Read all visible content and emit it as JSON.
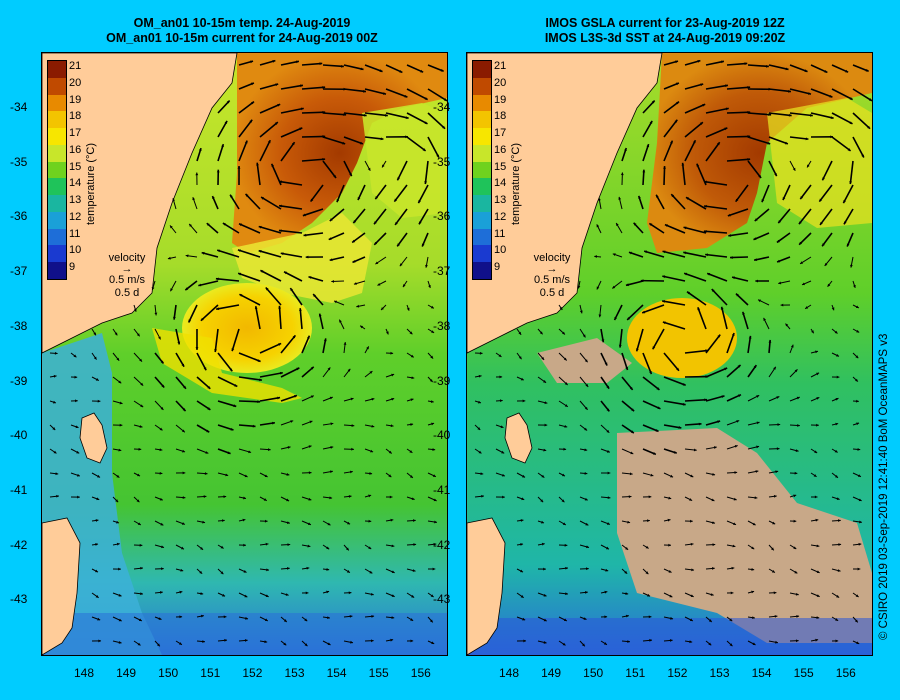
{
  "left": {
    "title_line1": "OM_an01 10-15m temp. 24-Aug-2019",
    "title_line2": "OM_an01 10-15m current for 24-Aug-2019 00Z"
  },
  "right": {
    "title_line1": "IMOS GSLA current for 23-Aug-2019 12Z",
    "title_line2": "IMOS L3S-3d SST at 24-Aug-2019 09:20Z"
  },
  "colorbar": {
    "title": "temperature (°C)",
    "ticks": [
      "21",
      "20",
      "19",
      "18",
      "17",
      "16",
      "15",
      "14",
      "13",
      "12",
      "11",
      "10",
      "9"
    ],
    "colors": [
      "#8a1b00",
      "#c04a00",
      "#e88a00",
      "#f3c400",
      "#f7e600",
      "#c8e62a",
      "#6fd21e",
      "#1fc35a",
      "#1ab6a0",
      "#1aa0d8",
      "#1e6ed8",
      "#1a3ad0",
      "#10108a"
    ]
  },
  "velocity": {
    "label": "velocity",
    "speed": "0.5 m/s",
    "time": "0.5 d"
  },
  "y_ticks": [
    "-34",
    "-35",
    "-36",
    "-37",
    "-38",
    "-39",
    "-40",
    "-41",
    "-42",
    "-43"
  ],
  "x_ticks": [
    "148",
    "149",
    "150",
    "151",
    "152",
    "153",
    "154",
    "155",
    "156"
  ],
  "credit": "© CSIRO 2019   03-Sep-2019 12:41:40 BoM OceanMAPS v3",
  "colors": {
    "background": "#00ccff",
    "land": "#ffcc99",
    "no_data": "#c8a888"
  }
}
